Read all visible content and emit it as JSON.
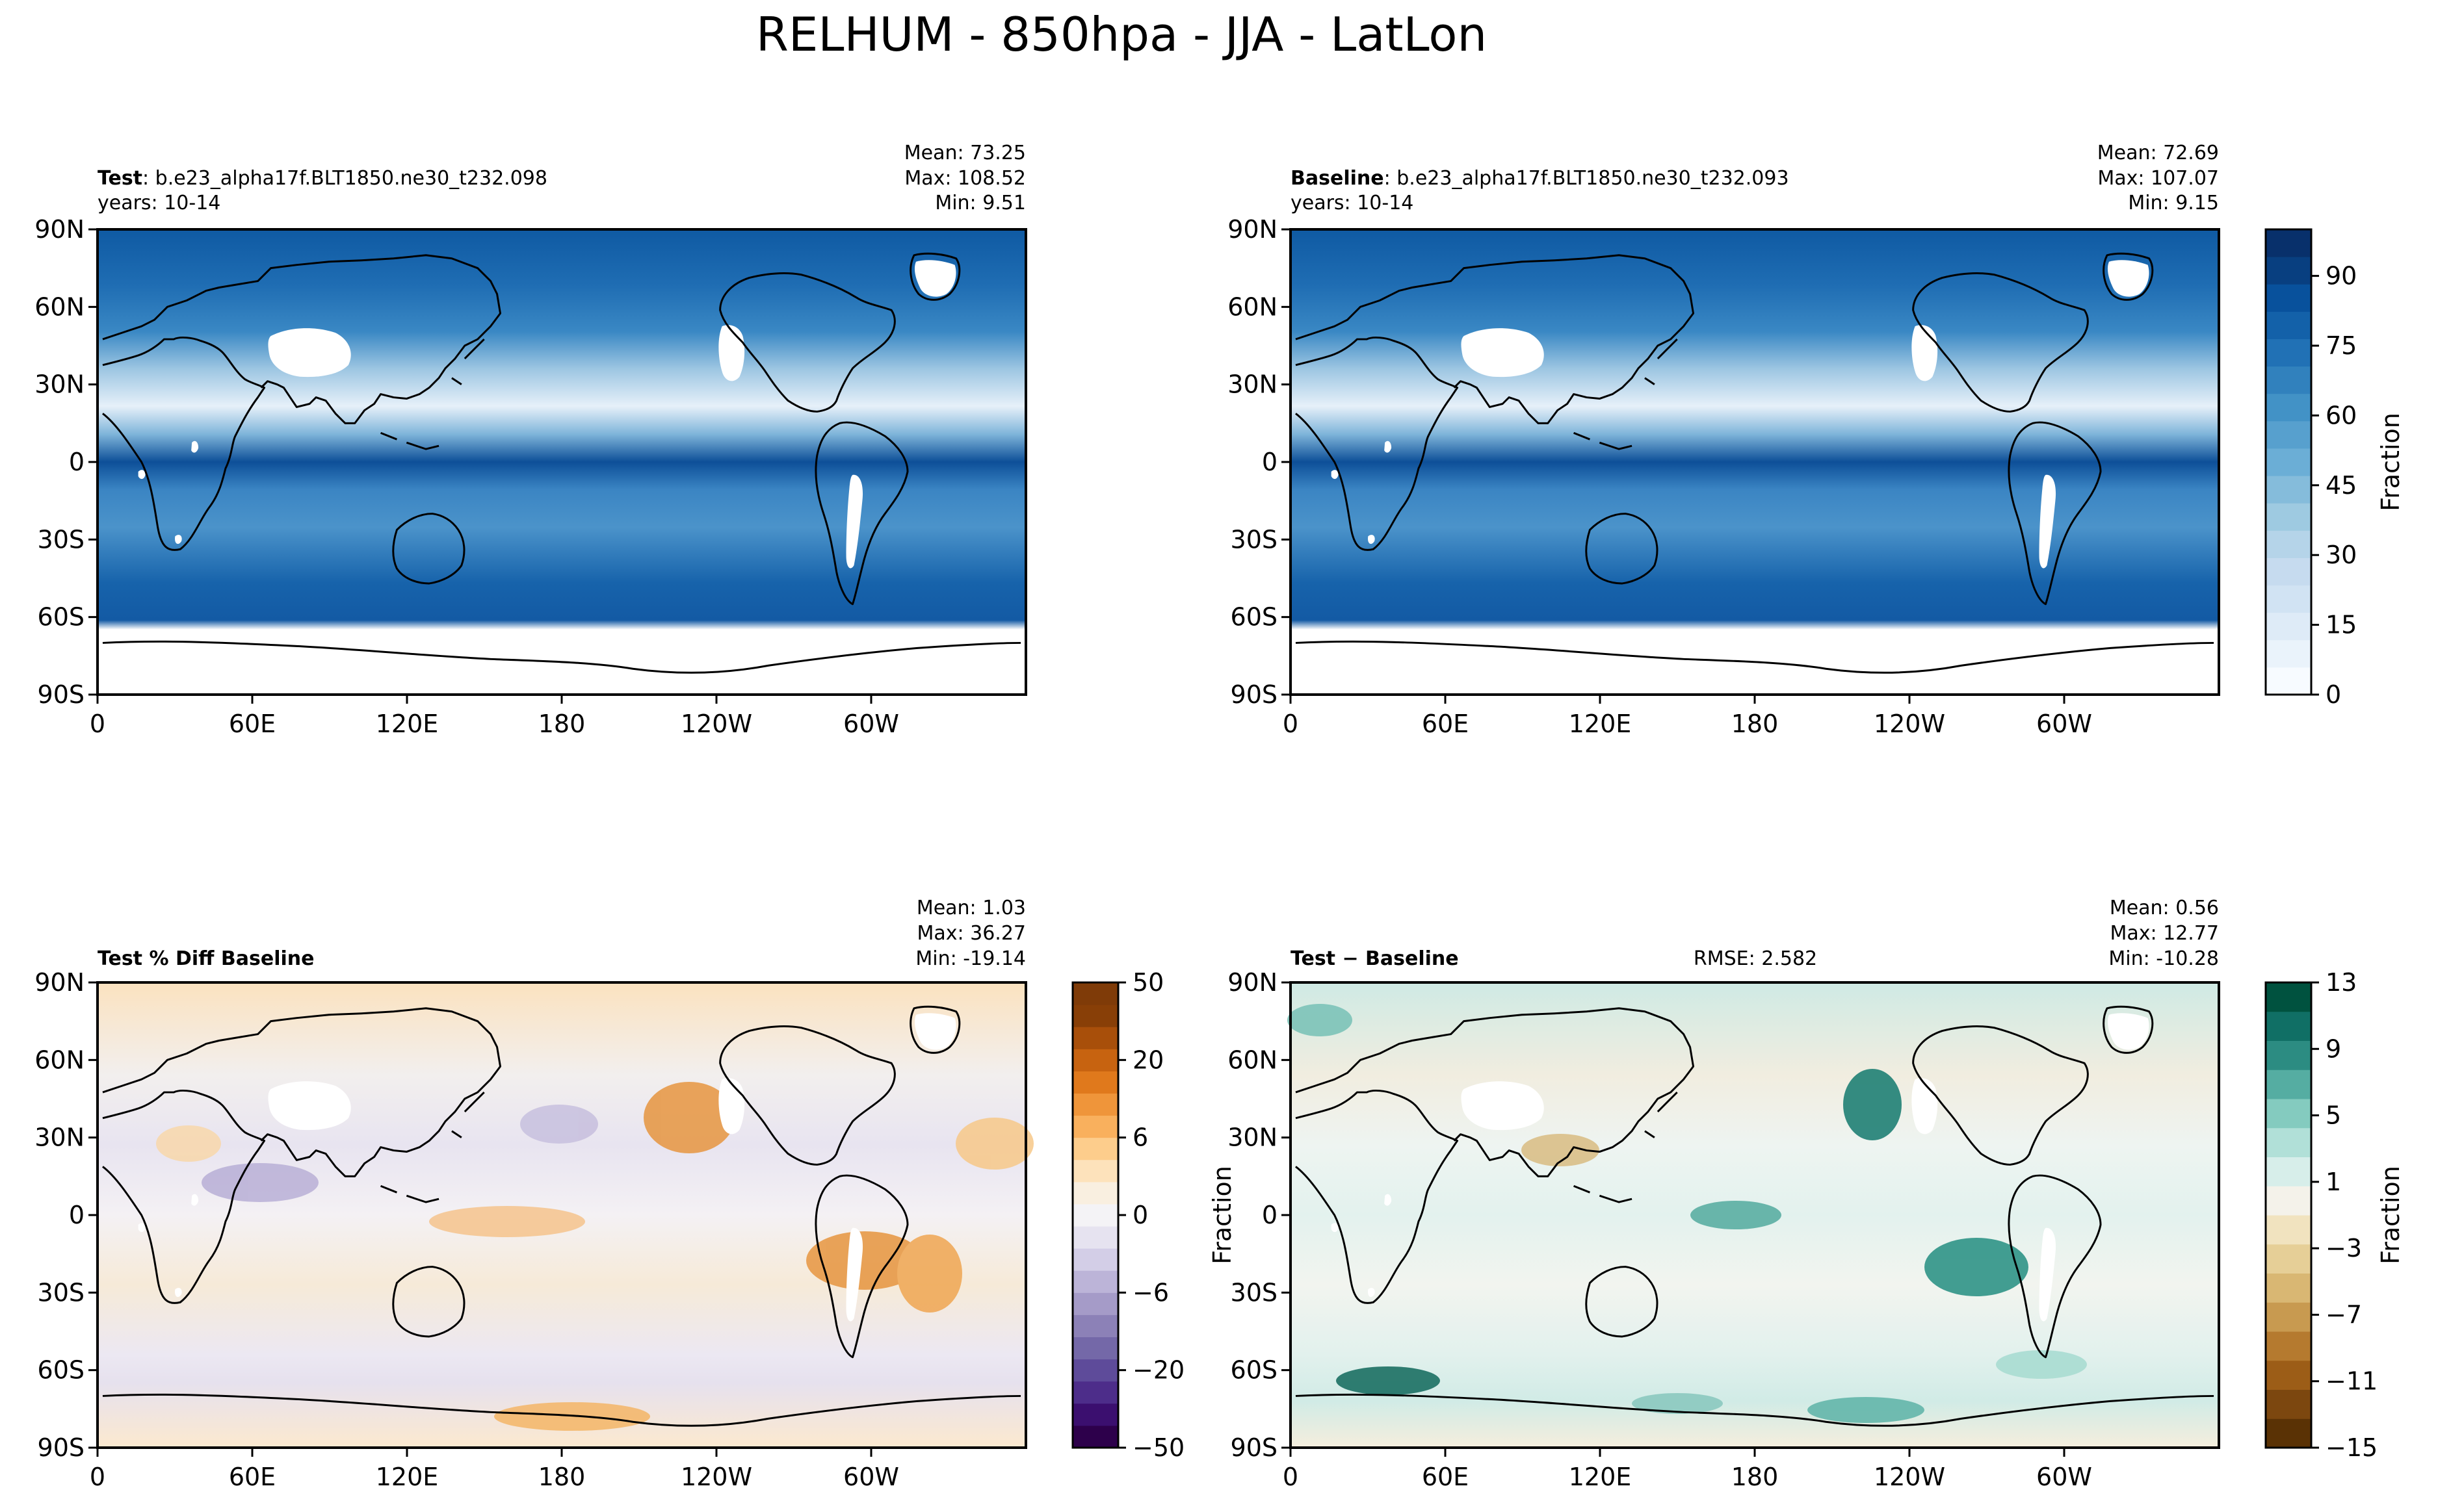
{
  "figure": {
    "title": "RELHUM - 850hpa - JJA - LatLon"
  },
  "panels": [
    {
      "id": "test",
      "label_bold": "Test",
      "label_rest": ": b.e23_alpha17f.BLT1850.ne30_t232.098",
      "years": "years: 10-14",
      "stats": {
        "mean": "Mean: 73.25",
        "max": "Max: 108.52",
        "min": "Min:  9.51"
      }
    },
    {
      "id": "baseline",
      "label_bold": "Baseline",
      "label_rest": ": b.e23_alpha17f.BLT1850.ne30_t232.093",
      "years": "years: 10-14",
      "stats": {
        "mean": "Mean: 72.69",
        "max": "Max: 107.07",
        "min": "Min:  9.15"
      }
    },
    {
      "id": "pctdiff",
      "label_bold": "Test % Diff Baseline",
      "stats": {
        "mean": "Mean:  1.03",
        "max": "Max: 36.27",
        "min": "Min: -19.14"
      }
    },
    {
      "id": "diff",
      "label_bold": "Test − Baseline",
      "rmse": "RMSE: 2.582",
      "ylabel": "Fraction",
      "stats": {
        "mean": "Mean:  0.56",
        "max": "Max: 12.77",
        "min": "Min: -10.28"
      }
    }
  ],
  "axes": {
    "lat_ticks": [
      "90N",
      "60N",
      "30N",
      "0",
      "30S",
      "60S",
      "90S"
    ],
    "lon_ticks": [
      "0",
      "60E",
      "120E",
      "180",
      "120W",
      "60W"
    ]
  },
  "colorbars": [
    {
      "id": "main",
      "label": "Fraction",
      "colormap": "Blues",
      "range": [
        0,
        100
      ],
      "ticks": [
        "90",
        "75",
        "60",
        "45",
        "30",
        "15",
        "0"
      ],
      "tick_values": [
        90,
        75,
        60,
        45,
        30,
        15,
        0
      ],
      "colors": [
        "#f7fbff",
        "#eaf3fb",
        "#deebf7",
        "#d1e3f3",
        "#c6dbef",
        "#b5d4e9",
        "#9ecae1",
        "#85bcdb",
        "#6baed6",
        "#57a0ce",
        "#4292c6",
        "#3181bd",
        "#2171b5",
        "#1361a9",
        "#08519c",
        "#083f80",
        "#08306b"
      ]
    },
    {
      "id": "pct",
      "colormap": "PuOr",
      "ticks": [
        "50",
        "20",
        "6",
        "0",
        "−6",
        "−20",
        "−50"
      ],
      "colors": [
        "#2d004b",
        "#3b0f6f",
        "#4d2d8a",
        "#5e4b9a",
        "#7468a8",
        "#8c81b7",
        "#a59bc8",
        "#bcb4d8",
        "#d3cee7",
        "#e6e3f0",
        "#f4f3f6",
        "#f9efe0",
        "#fde2bb",
        "#fdcd8c",
        "#f9b05d",
        "#ef953a",
        "#e0791c",
        "#c76310",
        "#a84f0a",
        "#883f07",
        "#7f3b08"
      ]
    },
    {
      "id": "diff",
      "label": "Fraction",
      "colormap": "BrBG",
      "ticks": [
        "13",
        "9",
        "5",
        "1",
        "−3",
        "−7",
        "−11",
        "−15"
      ],
      "colors": [
        "#5a3205",
        "#7c470f",
        "#9c5d17",
        "#b57a2f",
        "#c89a50",
        "#d9b773",
        "#e6cf97",
        "#f1e3bf",
        "#f4f2ea",
        "#d7eeea",
        "#b1e0d8",
        "#84cbbf",
        "#55ada2",
        "#2c8c82",
        "#106f65",
        "#00523f"
      ]
    }
  ]
}
